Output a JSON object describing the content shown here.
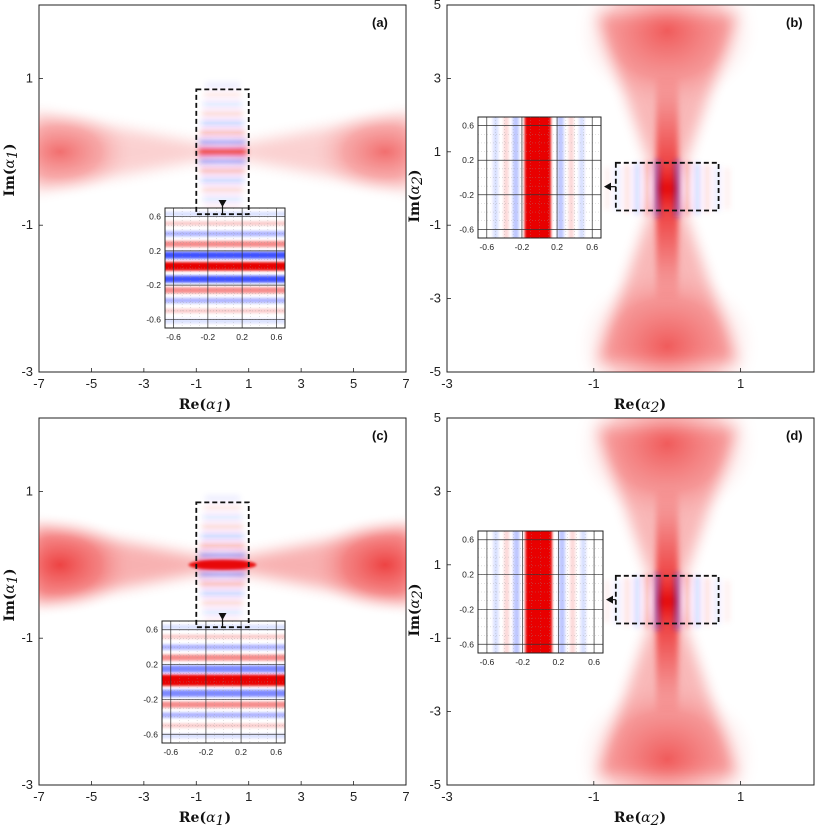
{
  "figure": {
    "colors": {
      "positive": "#e80000",
      "negative": "#1428ff",
      "frame": "#222222"
    }
  },
  "chart_data": [
    {
      "panel": "(a)",
      "type": "heatmap",
      "xlabel": "Re(α1)",
      "ylabel": "Im(α1)",
      "xlabel_main": "Re(",
      "xlabel_var": "α",
      "xlabel_sub": "1",
      "xlabel_end": ")",
      "ylabel_main": "Im(",
      "ylabel_var": "α",
      "ylabel_sub": "1",
      "ylabel_end": ")",
      "xlim": [
        -7,
        7
      ],
      "ylim": [
        -3,
        2
      ],
      "xticks": [
        "-7",
        "-5",
        "-3",
        "-1",
        "1",
        "3",
        "5",
        "7"
      ],
      "yticks": [
        "1",
        "-1",
        "-3"
      ],
      "orientation": "horizontal",
      "center": [
        0,
        0
      ],
      "zoom_box": {
        "x": [
          -1,
          1
        ],
        "y": [
          -0.85,
          0.85
        ]
      },
      "inset": {
        "xlim": [
          -0.7,
          0.7
        ],
        "ylim": [
          -0.7,
          0.7
        ],
        "xticks": [
          "-0.6",
          "-0.2",
          "0.2",
          "0.6"
        ],
        "yticks": [
          "0.6",
          "0.2",
          "-0.2",
          "-0.6"
        ]
      }
    },
    {
      "panel": "(b)",
      "type": "heatmap",
      "xlabel": "Re(α2)",
      "ylabel": "Im(α2)",
      "xlabel_main": "Re(",
      "xlabel_var": "α",
      "xlabel_sub": "2",
      "xlabel_end": ")",
      "ylabel_main": "Im(",
      "ylabel_var": "α",
      "ylabel_sub": "2",
      "ylabel_end": ")",
      "xlim": [
        -3,
        2
      ],
      "ylim": [
        -5,
        5
      ],
      "xticks": [
        "-3",
        "-1",
        "1"
      ],
      "yticks": [
        "5",
        "3",
        "1",
        "-1",
        "-3",
        "-5"
      ],
      "orientation": "vertical",
      "center": [
        0,
        0
      ],
      "zoom_box": {
        "x": [
          -0.7,
          0.7
        ],
        "y": [
          -0.6,
          0.7
        ]
      },
      "inset": {
        "xlim": [
          -0.7,
          0.7
        ],
        "ylim": [
          -0.7,
          0.7
        ],
        "xticks": [
          "-0.6",
          "-0.2",
          "0.2",
          "0.6"
        ],
        "yticks": [
          "0.6",
          "0.2",
          "-0.2",
          "-0.6"
        ]
      }
    },
    {
      "panel": "(c)",
      "type": "heatmap",
      "xlabel": "Re(α1)",
      "ylabel": "Im(α1)",
      "xlabel_main": "Re(",
      "xlabel_var": "α",
      "xlabel_sub": "1",
      "xlabel_end": ")",
      "ylabel_main": "Im(",
      "ylabel_var": "α",
      "ylabel_sub": "1",
      "ylabel_end": ")",
      "xlim": [
        -7,
        7
      ],
      "ylim": [
        -3,
        2
      ],
      "xticks": [
        "-7",
        "-5",
        "-3",
        "-1",
        "1",
        "3",
        "5",
        "7"
      ],
      "yticks": [
        "1",
        "-1",
        "-3"
      ],
      "orientation": "horizontal",
      "center": [
        0,
        0
      ],
      "zoom_box": {
        "x": [
          -1,
          1
        ],
        "y": [
          -0.85,
          0.85
        ]
      },
      "inset": {
        "xlim": [
          -0.7,
          0.7
        ],
        "ylim": [
          -0.7,
          0.7
        ],
        "xticks": [
          "-0.6",
          "-0.2",
          "0.2",
          "0.6"
        ],
        "yticks": [
          "0.6",
          "0.2",
          "-0.2",
          "-0.6"
        ]
      }
    },
    {
      "panel": "(d)",
      "type": "heatmap",
      "xlabel": "Re(α2)",
      "ylabel": "Im(α2)",
      "xlabel_main": "Re(",
      "xlabel_var": "α",
      "xlabel_sub": "2",
      "xlabel_end": ")",
      "ylabel_main": "Im(",
      "ylabel_var": "α",
      "ylabel_sub": "2",
      "ylabel_end": ")",
      "xlim": [
        -3,
        2
      ],
      "ylim": [
        -5,
        5
      ],
      "xticks": [
        "-3",
        "-1",
        "1"
      ],
      "yticks": [
        "5",
        "3",
        "1",
        "-1",
        "-3",
        "-5"
      ],
      "orientation": "vertical",
      "center": [
        0,
        0
      ],
      "zoom_box": {
        "x": [
          -0.7,
          0.7
        ],
        "y": [
          -0.6,
          0.7
        ]
      },
      "inset": {
        "xlim": [
          -0.7,
          0.7
        ],
        "ylim": [
          -0.7,
          0.7
        ],
        "xticks": [
          "-0.6",
          "-0.2",
          "0.2",
          "0.6"
        ],
        "yticks": [
          "0.6",
          "0.2",
          "-0.2",
          "-0.6"
        ]
      }
    }
  ]
}
